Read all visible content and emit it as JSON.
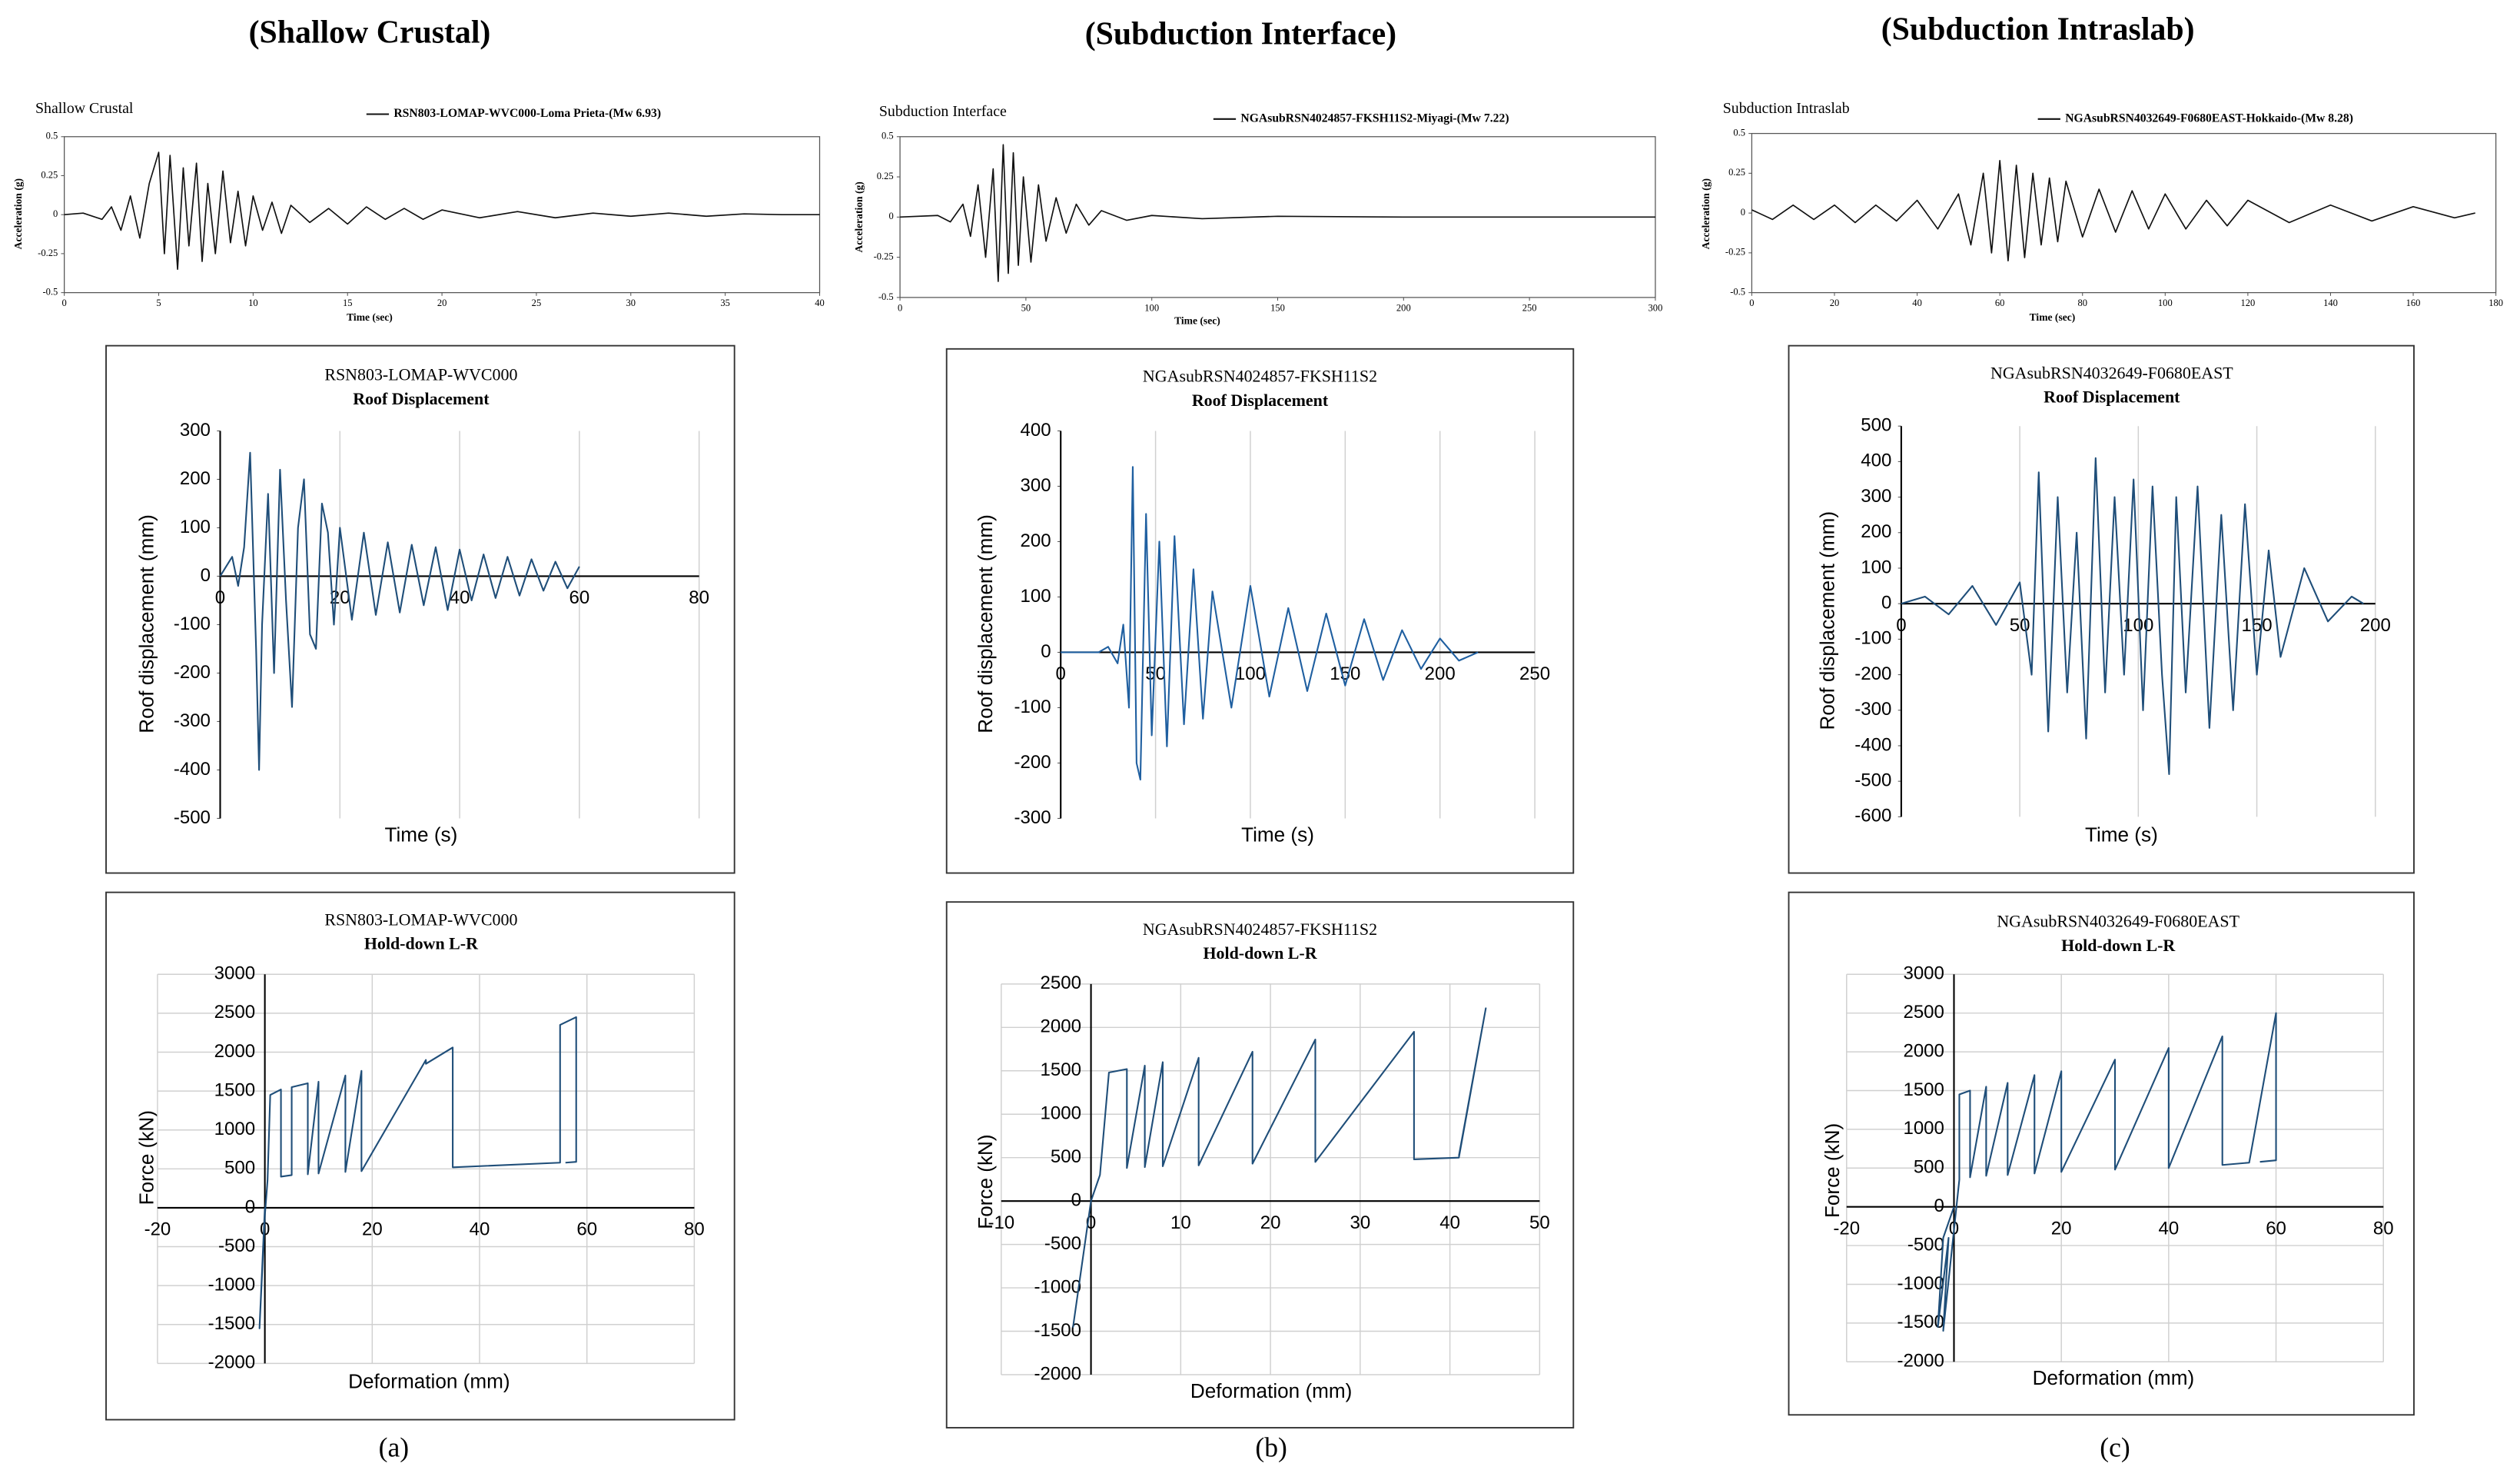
{
  "headings": [
    "(Shallow Crustal)",
    "(Subduction Interface)",
    "(Subduction Intraslab)"
  ],
  "captions": [
    "(a)",
    "(b)",
    "(c)"
  ],
  "chart_data": [
    {
      "type": "line",
      "title": "Shallow Crustal",
      "x_label": "Time (sec)",
      "y_label": "Acceleration (g)",
      "xlim": [
        0,
        40
      ],
      "xticks": [
        0,
        5,
        10,
        15,
        20,
        25,
        30,
        35,
        40
      ],
      "ylim": [
        -0.5,
        0.5
      ],
      "yticks": [
        -0.5,
        -0.25,
        0,
        0.25,
        0.5
      ],
      "grid": false,
      "x": [
        0,
        1,
        2,
        2.5,
        3,
        3.5,
        4,
        4.5,
        5,
        5.3,
        5.6,
        6,
        6.3,
        6.6,
        7,
        7.3,
        7.6,
        8,
        8.4,
        8.8,
        9.2,
        9.6,
        10,
        10.5,
        11,
        11.5,
        12,
        13,
        14,
        15,
        16,
        17,
        18,
        19,
        20,
        22,
        24,
        26,
        28,
        30,
        32,
        34,
        36,
        38,
        40
      ],
      "series": [
        {
          "name": "RSN803-LOMAP-WVC000-Loma Prieta-(Mw 6.93)",
          "color": "#111111",
          "values": [
            0,
            0.01,
            -0.03,
            0.05,
            -0.1,
            0.12,
            -0.15,
            0.2,
            0.4,
            -0.25,
            0.38,
            -0.35,
            0.3,
            -0.2,
            0.33,
            -0.3,
            0.2,
            -0.25,
            0.28,
            -0.18,
            0.15,
            -0.2,
            0.12,
            -0.1,
            0.08,
            -0.12,
            0.06,
            -0.05,
            0.04,
            -0.06,
            0.05,
            -0.03,
            0.04,
            -0.03,
            0.03,
            -0.02,
            0.02,
            -0.02,
            0.01,
            -0.01,
            0.01,
            -0.01,
            0.005,
            0,
            0
          ]
        }
      ]
    },
    {
      "type": "line",
      "title": "Subduction Interface",
      "x_label": "Time (sec)",
      "y_label": "Acceleration (g)",
      "xlim": [
        0,
        300
      ],
      "xticks": [
        0,
        50,
        100,
        150,
        200,
        250,
        300
      ],
      "ylim": [
        -0.5,
        0.5
      ],
      "yticks": [
        -0.5,
        -0.25,
        0,
        0.25,
        0.5
      ],
      "grid": false,
      "x": [
        0,
        15,
        20,
        25,
        28,
        31,
        34,
        37,
        39,
        41,
        43,
        45,
        47,
        49,
        52,
        55,
        58,
        62,
        66,
        70,
        75,
        80,
        90,
        100,
        120,
        150,
        200,
        250,
        300
      ],
      "series": [
        {
          "name": "NGAsubRSN4024857-FKSH11S2-Miyagi-(Mw 7.22)",
          "color": "#111111",
          "values": [
            0,
            0.01,
            -0.03,
            0.08,
            -0.12,
            0.2,
            -0.25,
            0.3,
            -0.4,
            0.45,
            -0.35,
            0.4,
            -0.3,
            0.25,
            -0.28,
            0.2,
            -0.15,
            0.12,
            -0.1,
            0.08,
            -0.05,
            0.04,
            -0.02,
            0.01,
            -0.01,
            0.005,
            0,
            0,
            0
          ]
        }
      ]
    },
    {
      "type": "line",
      "title": "Subduction Intraslab",
      "x_label": "Time (sec)",
      "y_label": "Acceleration (g)",
      "xlim": [
        0,
        180
      ],
      "xticks": [
        0,
        20,
        40,
        60,
        80,
        100,
        120,
        140,
        160,
        180
      ],
      "ylim": [
        -0.5,
        0.5
      ],
      "yticks": [
        -0.5,
        -0.25,
        0,
        0.25,
        0.5
      ],
      "grid": false,
      "x": [
        0,
        5,
        10,
        15,
        20,
        25,
        30,
        35,
        40,
        45,
        50,
        53,
        56,
        58,
        60,
        62,
        64,
        66,
        68,
        70,
        72,
        74,
        76,
        80,
        84,
        88,
        92,
        96,
        100,
        105,
        110,
        115,
        120,
        130,
        140,
        150,
        160,
        170,
        175
      ],
      "series": [
        {
          "name": "NGAsubRSN4032649-F0680EAST-Hokkaido-(Mw 8.28)",
          "color": "#111111",
          "values": [
            0.02,
            -0.04,
            0.05,
            -0.04,
            0.05,
            -0.06,
            0.05,
            -0.05,
            0.08,
            -0.1,
            0.12,
            -0.2,
            0.25,
            -0.25,
            0.33,
            -0.3,
            0.3,
            -0.28,
            0.25,
            -0.2,
            0.22,
            -0.18,
            0.2,
            -0.15,
            0.15,
            -0.12,
            0.14,
            -0.1,
            0.12,
            -0.1,
            0.08,
            -0.08,
            0.08,
            -0.06,
            0.05,
            -0.05,
            0.04,
            -0.03,
            0
          ]
        }
      ]
    },
    {
      "type": "line",
      "title": "RSN803-LOMAP-WVC000",
      "subtitle": "Roof Displacement",
      "x_label": "Time (s)",
      "y_label": "Roof displacement (mm)",
      "xlim": [
        0,
        80
      ],
      "xticks": [
        0,
        20,
        40,
        60,
        80
      ],
      "ylim": [
        -500,
        300
      ],
      "yticks": [
        -500,
        -400,
        -300,
        -200,
        -100,
        0,
        100,
        200,
        300
      ],
      "grid": "x",
      "x": [
        0,
        1,
        2,
        3,
        4,
        5,
        6,
        6.5,
        7,
        8,
        9,
        10,
        11,
        12,
        13,
        14,
        15,
        16,
        17,
        18,
        19,
        20,
        22,
        24,
        26,
        28,
        30,
        32,
        34,
        36,
        38,
        40,
        42,
        44,
        46,
        48,
        50,
        52,
        54,
        56,
        58,
        60
      ],
      "series": [
        {
          "color": "#1f4e79",
          "values": [
            0,
            20,
            40,
            -20,
            60,
            255,
            -150,
            -400,
            -100,
            170,
            -200,
            220,
            -50,
            -270,
            100,
            200,
            -120,
            -150,
            150,
            90,
            -100,
            100,
            -90,
            90,
            -80,
            70,
            -75,
            65,
            -60,
            60,
            -70,
            55,
            -50,
            45,
            -45,
            40,
            -40,
            35,
            -30,
            30,
            -25,
            20
          ]
        }
      ]
    },
    {
      "type": "line",
      "title": "NGAsubRSN4024857-FKSH11S2",
      "subtitle": "Roof Displacement",
      "x_label": "Time (s)",
      "y_label": "Roof displacement (mm)",
      "xlim": [
        0,
        250
      ],
      "xticks": [
        0,
        50,
        100,
        150,
        200,
        250
      ],
      "ylim": [
        -300,
        400
      ],
      "yticks": [
        -300,
        -200,
        -100,
        0,
        100,
        200,
        300,
        400
      ],
      "grid": "x",
      "x": [
        0,
        20,
        25,
        30,
        33,
        36,
        38,
        40,
        42,
        45,
        48,
        52,
        56,
        60,
        65,
        70,
        75,
        80,
        90,
        100,
        110,
        120,
        130,
        140,
        150,
        160,
        170,
        180,
        190,
        200,
        210,
        220
      ],
      "series": [
        {
          "color": "#1f5fa0",
          "values": [
            0,
            0,
            10,
            -20,
            50,
            -100,
            335,
            -200,
            -230,
            250,
            -150,
            200,
            -170,
            210,
            -130,
            150,
            -120,
            110,
            -100,
            120,
            -80,
            80,
            -70,
            70,
            -60,
            60,
            -50,
            40,
            -30,
            25,
            -15,
            0
          ]
        }
      ]
    },
    {
      "type": "line",
      "title": "NGAsubRSN4032649-F0680EAST",
      "subtitle": "Roof Displacement",
      "x_label": "Time (s)",
      "y_label": "Roof displacement (mm)",
      "xlim": [
        0,
        200
      ],
      "xticks": [
        0,
        50,
        100,
        150,
        200
      ],
      "ylim": [
        -600,
        500
      ],
      "yticks": [
        -600,
        -500,
        -400,
        -300,
        -200,
        -100,
        0,
        100,
        200,
        300,
        400,
        500
      ],
      "grid": "x",
      "x": [
        0,
        10,
        20,
        30,
        40,
        50,
        55,
        58,
        62,
        66,
        70,
        74,
        78,
        82,
        86,
        90,
        94,
        98,
        102,
        106,
        110,
        113,
        116,
        120,
        125,
        130,
        135,
        140,
        145,
        150,
        155,
        160,
        170,
        180,
        190,
        195
      ],
      "series": [
        {
          "color": "#1f4e79",
          "values": [
            0,
            20,
            -30,
            50,
            -60,
            60,
            -200,
            370,
            -360,
            300,
            -250,
            200,
            -380,
            410,
            -250,
            300,
            -200,
            350,
            -300,
            330,
            -200,
            -480,
            300,
            -250,
            330,
            -350,
            250,
            -300,
            280,
            -200,
            150,
            -150,
            100,
            -50,
            20,
            0
          ]
        }
      ]
    },
    {
      "type": "line",
      "title": "RSN803-LOMAP-WVC000",
      "subtitle": "Hold-down L-R",
      "x_label": "Deformation (mm)",
      "y_label": "Force (kN)",
      "xlim": [
        -20,
        80
      ],
      "xticks": [
        -20,
        0,
        20,
        40,
        60,
        80
      ],
      "ylim": [
        -2000,
        3000
      ],
      "yticks": [
        -2000,
        -1500,
        -1000,
        -500,
        0,
        500,
        1000,
        1500,
        2000,
        2500,
        3000
      ],
      "grid": "both",
      "x": [
        0,
        -1,
        0,
        0.5,
        1,
        3,
        3,
        5,
        5,
        8,
        8,
        10,
        10,
        15,
        15,
        18,
        18,
        30,
        30,
        35,
        35,
        55,
        55,
        58,
        58,
        56
      ],
      "series": [
        {
          "color": "#1f4e79",
          "values": [
            0,
            -1550,
            -100,
            350,
            1450,
            1520,
            400,
            420,
            1550,
            1600,
            430,
            1620,
            440,
            1700,
            460,
            1760,
            470,
            1900,
            1850,
            2060,
            520,
            580,
            2350,
            2450,
            590,
            580
          ]
        }
      ]
    },
    {
      "type": "line",
      "title": "NGAsubRSN4024857-FKSH11S2",
      "subtitle": "Hold-down L-R",
      "x_label": "Deformation (mm)",
      "y_label": "Force (kN)",
      "xlim": [
        -10,
        50
      ],
      "xticks": [
        -10,
        0,
        10,
        20,
        30,
        40,
        50
      ],
      "ylim": [
        -2000,
        2500
      ],
      "yticks": [
        -2000,
        -1500,
        -1000,
        -500,
        0,
        500,
        1000,
        1500,
        2000,
        2500
      ],
      "grid": "both",
      "x": [
        0,
        -2,
        0,
        1,
        2,
        4,
        4,
        6,
        6,
        8,
        8,
        12,
        12,
        18,
        18,
        25,
        25,
        36,
        36,
        41,
        44,
        41
      ],
      "series": [
        {
          "color": "#1f4e79",
          "values": [
            0,
            -1450,
            0,
            300,
            1480,
            1520,
            380,
            1560,
            390,
            1600,
            400,
            1650,
            410,
            1720,
            430,
            1860,
            450,
            1950,
            480,
            500,
            2220,
            520
          ]
        }
      ]
    },
    {
      "type": "line",
      "title": "NGAsubRSN4032649-F0680EAST",
      "subtitle": "Hold-down L-R",
      "x_label": "Deformation (mm)",
      "y_label": "Force (kN)",
      "xlim": [
        -20,
        80
      ],
      "xticks": [
        -20,
        0,
        20,
        40,
        60,
        80
      ],
      "ylim": [
        -2000,
        3000
      ],
      "yticks": [
        -2000,
        -1500,
        -1000,
        -500,
        0,
        500,
        1000,
        1500,
        2000,
        2500,
        3000
      ],
      "grid": "both",
      "x": [
        0,
        -2,
        -3,
        -1,
        -2,
        0,
        1,
        1,
        3,
        3,
        6,
        6,
        10,
        10,
        15,
        15,
        20,
        20,
        30,
        30,
        40,
        40,
        50,
        50,
        55,
        60,
        60,
        57
      ],
      "series": [
        {
          "color": "#1f4e79",
          "values": [
            0,
            -400,
            -1550,
            -400,
            -1600,
            -300,
            350,
            1450,
            1500,
            380,
            1550,
            400,
            1600,
            410,
            1700,
            430,
            1750,
            450,
            1900,
            480,
            2050,
            500,
            2200,
            540,
            570,
            2500,
            600,
            580
          ]
        }
      ]
    }
  ]
}
